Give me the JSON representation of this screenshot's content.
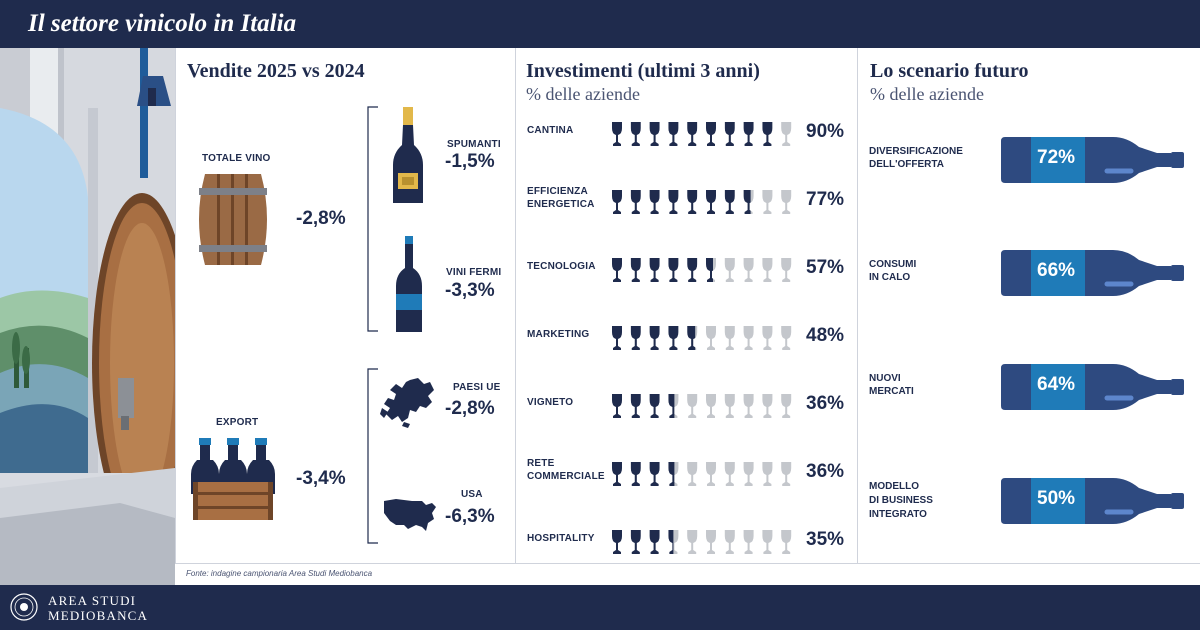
{
  "header": {
    "title": "Il settore vinicolo in Italia"
  },
  "footer": {
    "brand_line1": "AREA STUDI",
    "brand_line2": "MEDIOBANCA",
    "source": "Fonte: indagine campionaria Area Studi Mediobanca"
  },
  "colors": {
    "navy": "#1f2b4d",
    "accent_blue": "#1f7bb8",
    "grey_glass": "#c4c7cc",
    "wood": "#9a6a45",
    "gold": "#e2b84a"
  },
  "sales": {
    "title": "Vendite 2025 vs 2024",
    "totale": {
      "label": "TOTALE VINO",
      "value": "-2,8%",
      "icon": "barrel-icon"
    },
    "spumanti": {
      "label": "SPUMANTI",
      "value": "-1,5%",
      "icon": "sparkling-bottle-icon"
    },
    "vini_fermi": {
      "label": "VINI FERMI",
      "value": "-3,3%",
      "icon": "wine-bottle-icon"
    },
    "export": {
      "label": "EXPORT",
      "value": "-3,4%",
      "icon": "wine-crate-icon"
    },
    "paesi_ue": {
      "label": "PAESI UE",
      "value": "-2,8%",
      "icon": "europe-map-icon"
    },
    "usa": {
      "label": "USA",
      "value": "-6,3%",
      "icon": "usa-map-icon"
    }
  },
  "investments": {
    "title": "Investimenti (ultimi 3 anni)",
    "subtitle": "% delle aziende"
  },
  "future": {
    "title": "Lo scenario futuro",
    "subtitle": "% delle aziende",
    "items": [
      {
        "label1": "DIVERSIFICAZIONE",
        "label2": "DELL'OFFERTA",
        "label3": "",
        "pct": "72%"
      },
      {
        "label1": "CONSUMI",
        "label2": "IN CALO",
        "label3": "",
        "pct": "66%"
      },
      {
        "label1": "NUOVI",
        "label2": "MERCATI",
        "label3": "",
        "pct": "64%"
      },
      {
        "label1": "MODELLO",
        "label2": "DI BUSINESS",
        "label3": "INTEGRATO",
        "pct": "50%"
      }
    ]
  },
  "chart_data": {
    "type": "bar",
    "categories": [
      "CANTINA",
      "EFFICIENZA ENERGETICA",
      "TECNOLOGIA",
      "MARKETING",
      "VIGNETO",
      "RETE COMMERCIALE",
      "HOSPITALITY"
    ],
    "category_lines": [
      [
        "CANTINA"
      ],
      [
        "EFFICIENZA",
        "ENERGETICA"
      ],
      [
        "TECNOLOGIA"
      ],
      [
        "MARKETING"
      ],
      [
        "VIGNETO"
      ],
      [
        "RETE",
        "COMMERCIALE"
      ],
      [
        "HOSPITALITY"
      ]
    ],
    "values": [
      90,
      77,
      57,
      48,
      36,
      36,
      35
    ],
    "value_labels": [
      "90%",
      "77%",
      "57%",
      "48%",
      "36%",
      "36%",
      "35%"
    ],
    "unit_icons": 10,
    "ylim": [
      0,
      100
    ]
  }
}
